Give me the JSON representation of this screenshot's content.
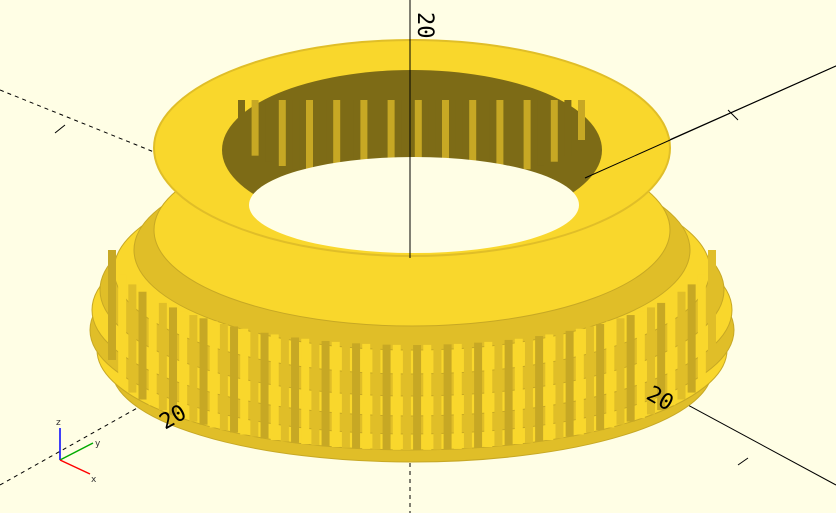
{
  "viewport": {
    "background": "#fffee5",
    "model_color": "#f9d72c",
    "model_shade_dark": "#7d6b16",
    "model_shade_mid": "#c7a824",
    "model_shade_side": "#e0be28",
    "axis_color": "#000000"
  },
  "axis_labels": {
    "z_top": "20",
    "x_front_left": "20",
    "y_front_right": "20"
  },
  "axes_gizmo": {
    "x_label": "x",
    "y_label": "y",
    "z_label": "z",
    "x_color": "#ff0000",
    "y_color": "#00aa00",
    "z_color": "#0000ff"
  }
}
